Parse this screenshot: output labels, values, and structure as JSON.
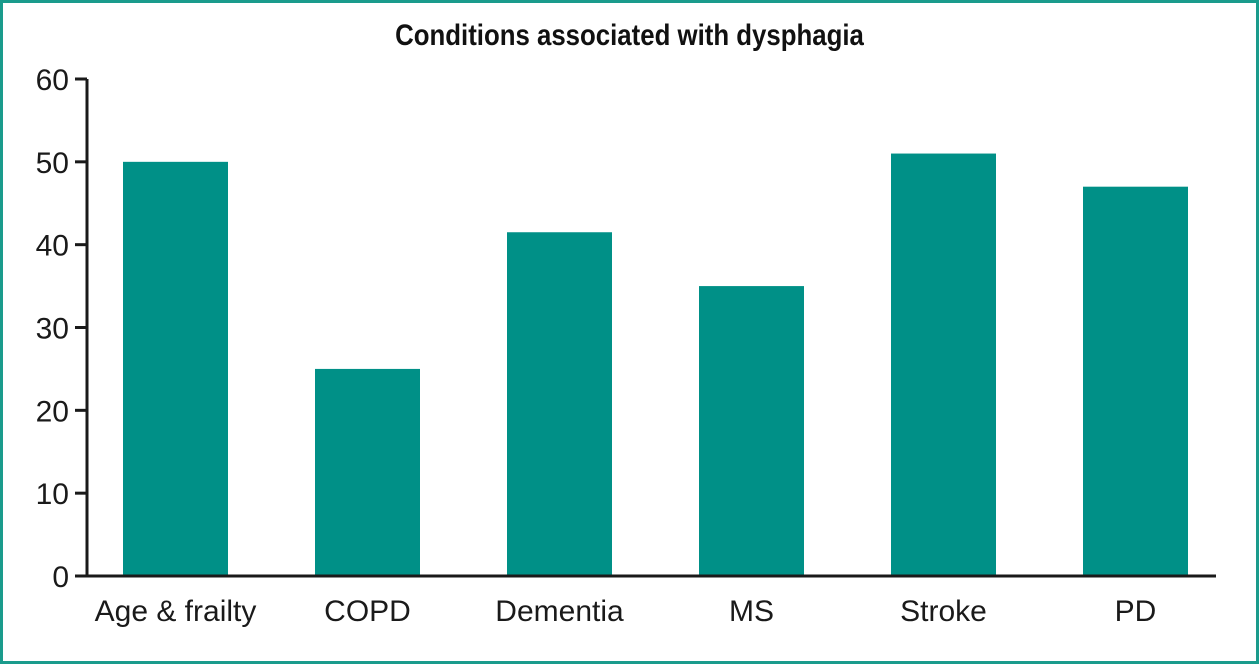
{
  "chart_data": {
    "type": "bar",
    "title": "Conditions associated with dysphagia",
    "xlabel": "",
    "ylabel": "",
    "categories": [
      "Age & frailty",
      "COPD",
      "Dementia",
      "MS",
      "Stroke",
      "PD"
    ],
    "values": [
      50,
      25,
      41.5,
      35,
      51,
      47
    ],
    "ylim": [
      0,
      60
    ],
    "yticks": [
      "0",
      "10",
      "20",
      "30",
      "40",
      "50",
      "60"
    ],
    "grid": false,
    "legend": "none",
    "colors": {
      "bar": "#009087",
      "border": "#1a9b8c",
      "axis": "#1a1a1a"
    }
  }
}
